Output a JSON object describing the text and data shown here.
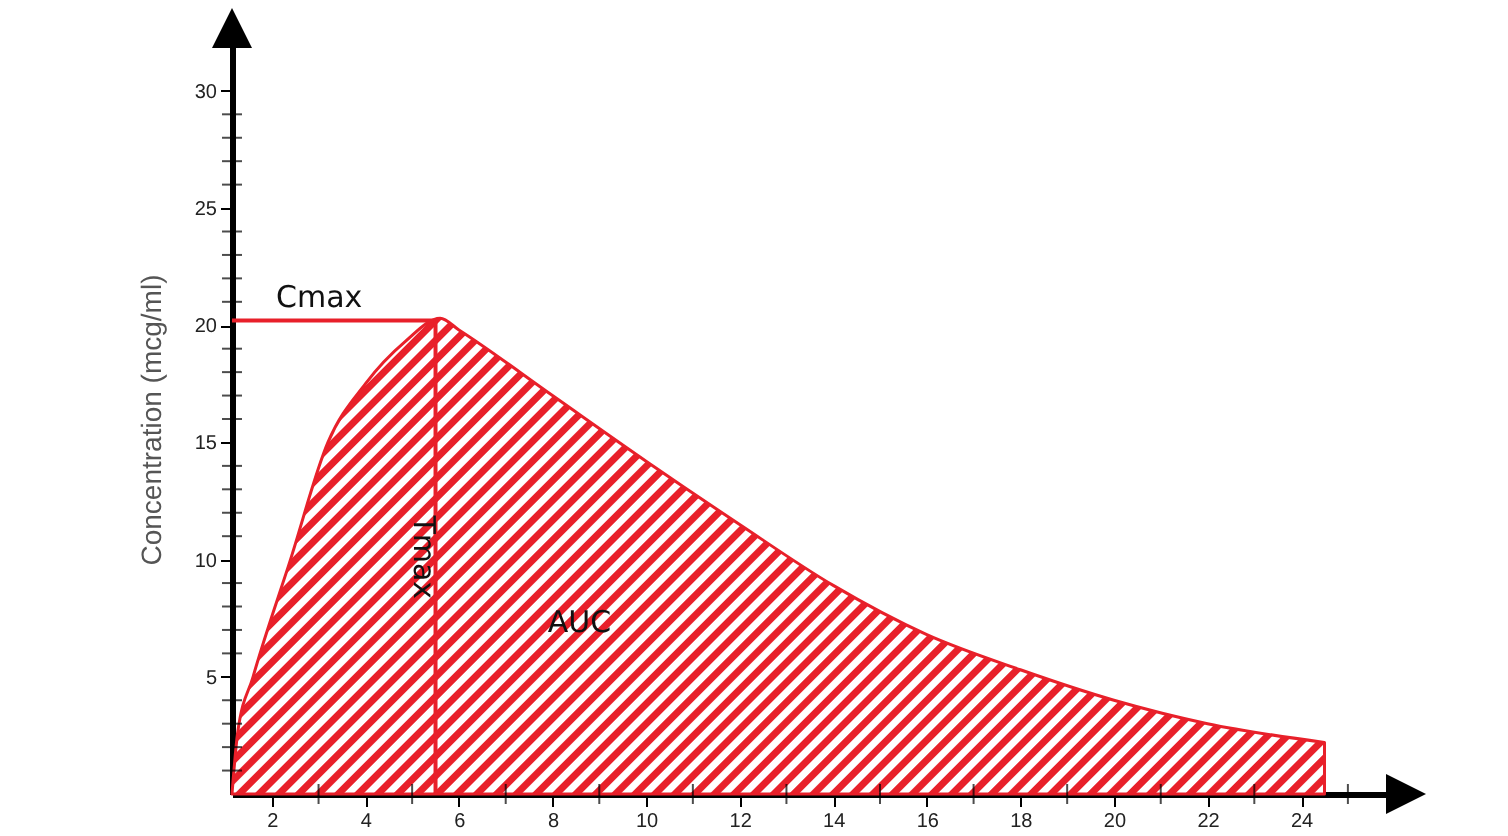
{
  "chart_data": {
    "type": "area",
    "ylabel": "Concentration (mcg/ml)",
    "xlim": [
      1.15,
      25.9
    ],
    "ylim": [
      0,
      32
    ],
    "xticks": [
      {
        "value": 2,
        "label": "2"
      },
      {
        "value": 3,
        "label": null
      },
      {
        "value": 4,
        "label": "4"
      },
      {
        "value": 5,
        "label": null
      },
      {
        "value": 6,
        "label": "6"
      },
      {
        "value": 7,
        "label": null
      },
      {
        "value": 8,
        "label": "8"
      },
      {
        "value": 9,
        "label": null
      },
      {
        "value": 10,
        "label": "10"
      },
      {
        "value": 11,
        "label": null
      },
      {
        "value": 12,
        "label": "12"
      },
      {
        "value": 13,
        "label": null
      },
      {
        "value": 14,
        "label": "14"
      },
      {
        "value": 15,
        "label": null
      },
      {
        "value": 16,
        "label": "16"
      },
      {
        "value": 17,
        "label": null
      },
      {
        "value": 18,
        "label": "18"
      },
      {
        "value": 19,
        "label": null
      },
      {
        "value": 20,
        "label": "20"
      },
      {
        "value": 21,
        "label": null
      },
      {
        "value": 22,
        "label": "22"
      },
      {
        "value": 23,
        "label": null
      },
      {
        "value": 24,
        "label": "24"
      },
      {
        "value": 25,
        "label": null
      }
    ],
    "yticks": [
      {
        "value": 1,
        "label": null
      },
      {
        "value": 2,
        "label": null
      },
      {
        "value": 3,
        "label": null
      },
      {
        "value": 4,
        "label": null
      },
      {
        "value": 5,
        "label": "5"
      },
      {
        "value": 6,
        "label": null
      },
      {
        "value": 7,
        "label": null
      },
      {
        "value": 8,
        "label": null
      },
      {
        "value": 9,
        "label": null
      },
      {
        "value": 10,
        "label": "10"
      },
      {
        "value": 11,
        "label": null
      },
      {
        "value": 12,
        "label": null
      },
      {
        "value": 13,
        "label": null
      },
      {
        "value": 14,
        "label": null
      },
      {
        "value": 15,
        "label": "15"
      },
      {
        "value": 16,
        "label": null
      },
      {
        "value": 17,
        "label": null
      },
      {
        "value": 18,
        "label": null
      },
      {
        "value": 19,
        "label": null
      },
      {
        "value": 20,
        "label": "20"
      },
      {
        "value": 21,
        "label": null
      },
      {
        "value": 22,
        "label": null
      },
      {
        "value": 23,
        "label": null
      },
      {
        "value": 24,
        "label": null
      },
      {
        "value": 25,
        "label": "25"
      },
      {
        "value": 26,
        "label": null
      },
      {
        "value": 27,
        "label": null
      },
      {
        "value": 28,
        "label": null
      },
      {
        "value": 29,
        "label": null
      },
      {
        "value": 30,
        "label": "30"
      }
    ],
    "x": [
      1.15,
      1.27,
      1.6,
      2.4,
      3.2,
      4.0,
      4.85,
      5.6,
      6,
      8,
      10,
      12,
      14,
      16,
      18,
      20,
      22,
      24.5
    ],
    "series": [
      {
        "color": "#e8202a",
        "values": [
          0,
          2.6,
          5,
          10,
          15,
          17.5,
          19.3,
          20.3,
          19.8,
          17.0,
          14.2,
          11.5,
          8.9,
          6.8,
          5.3,
          4.0,
          3.0,
          2.2
        ]
      }
    ],
    "ref_lines": [
      {
        "axis": "y",
        "value": 20.2,
        "label": "Cmax",
        "color": "#e8202a"
      },
      {
        "axis": "x",
        "value": 5.5,
        "label": "Tmax",
        "color": "#e8202a"
      }
    ],
    "annotations": [
      "AUC"
    ],
    "grid": false,
    "marker": "none"
  }
}
